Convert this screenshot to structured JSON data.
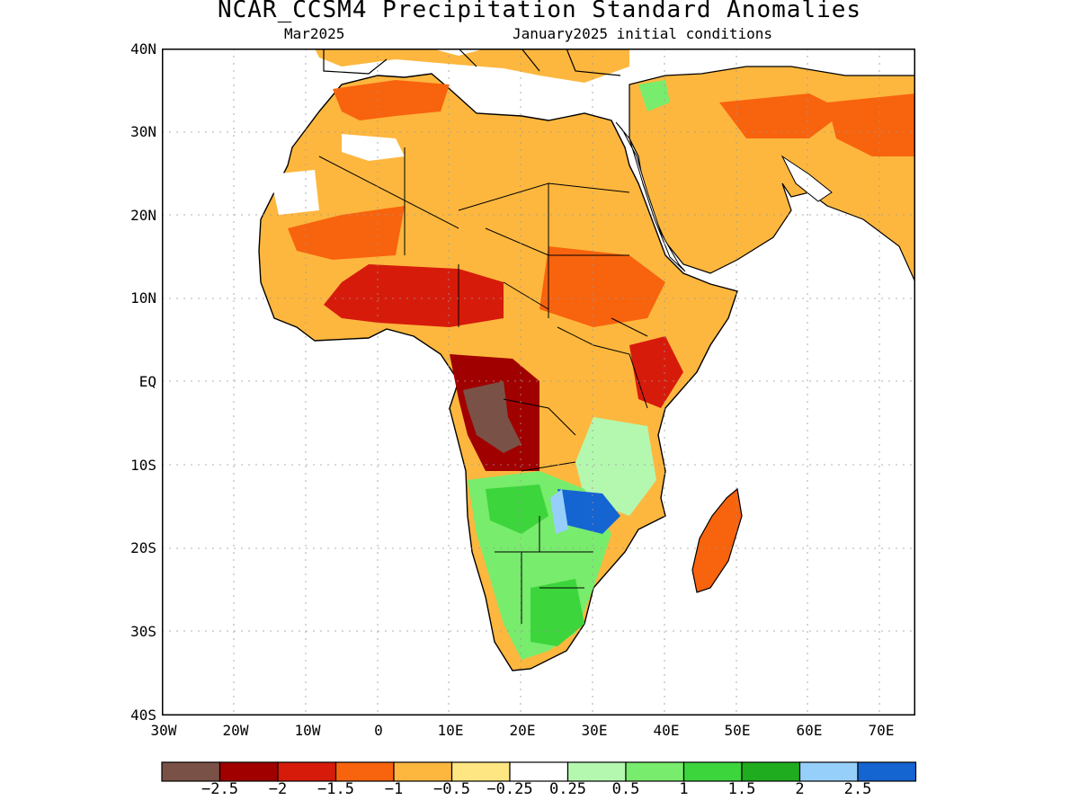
{
  "title": "NCAR_CCSM4 Precipitation Standard Anomalies",
  "subtitle_left": "Mar2025",
  "subtitle_right": "January2025 initial conditions",
  "lat_labels": [
    "40N",
    "30N",
    "20N",
    "10N",
    "EQ",
    "10S",
    "20S",
    "30S",
    "40S"
  ],
  "lon_labels": [
    "30W",
    "20W",
    "10W",
    "0",
    "10E",
    "20E",
    "30E",
    "40E",
    "50E",
    "60E",
    "70E"
  ],
  "colorbar": {
    "colors": [
      "#7a5146",
      "#a10000",
      "#d71b0b",
      "#f8630e",
      "#fdb73e",
      "#fee682",
      "#ffffff",
      "#b4f8b0",
      "#78ec6c",
      "#3cd53c",
      "#1fad1f",
      "#96d0fa",
      "#1464d2"
    ],
    "labels": [
      "−2.5",
      "−2",
      "−1.5",
      "−1",
      "−0.5",
      "−0.25",
      "0.25",
      "0.5",
      "1",
      "1.5",
      "2",
      "2.5"
    ]
  },
  "regions": {
    "west_africa_sahel": "orange",
    "central_africa_gulf_of_guinea": "dark red",
    "angola_congo": "brown",
    "southern_africa": "green",
    "mozambique_malawi": "blue",
    "arabian_peninsula": "light orange",
    "madagascar": "orange"
  }
}
